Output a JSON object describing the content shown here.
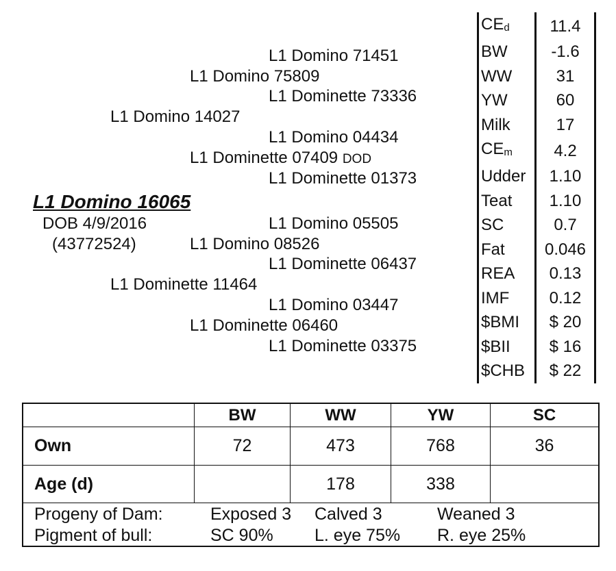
{
  "animal": {
    "name": "L1 Domino 16065",
    "dob": "DOB 4/9/2016",
    "reg": "(43772524)"
  },
  "pedigree": {
    "sss": "L1 Domino 71451",
    "ss": "L1 Domino 75809",
    "ssd": "L1 Dominette 73336",
    "s": "L1 Domino 14027",
    "sds": "L1 Domino 04434",
    "sd": "L1 Dominette 07409",
    "sd_note": "DOD",
    "sdd": "L1 Dominette 01373",
    "dss": "L1 Domino 05505",
    "ds": "L1 Domino 08526",
    "dsd": "L1 Dominette 06437",
    "d": "L1 Dominette 11464",
    "dds": "L1 Domino 03447",
    "dd": "L1 Dominette 06460",
    "ddd": "L1 Dominette 03375"
  },
  "epds": [
    {
      "k": "CE",
      "sub": "d",
      "v": "11.4"
    },
    {
      "k": "BW",
      "v": "-1.6"
    },
    {
      "k": "WW",
      "v": "31"
    },
    {
      "k": "YW",
      "v": "60"
    },
    {
      "k": "Milk",
      "v": "17"
    },
    {
      "k": "CE",
      "sub": "m",
      "v": "4.2"
    },
    {
      "k": "Udder",
      "v": "1.10"
    },
    {
      "k": "Teat",
      "v": "1.10"
    },
    {
      "k": "SC",
      "v": "0.7"
    },
    {
      "k": "Fat",
      "v": "0.046"
    },
    {
      "k": "REA",
      "v": "0.13"
    },
    {
      "k": "IMF",
      "v": "0.12"
    },
    {
      "k": "$BMI",
      "v": "$ 20"
    },
    {
      "k": "$BII",
      "v": "$ 16"
    },
    {
      "k": "$CHB",
      "v": "$ 22"
    }
  ],
  "performance": {
    "headers": [
      "",
      "BW",
      "WW",
      "YW",
      "SC"
    ],
    "rows": [
      [
        "Own",
        "72",
        "473",
        "768",
        "36"
      ],
      [
        "Age (d)",
        "",
        "178",
        "338",
        ""
      ]
    ],
    "progeny": {
      "label": "Progeny of Dam:",
      "exposed": "Exposed 3",
      "calved": "Calved 3",
      "weaned": "Weaned 3"
    },
    "pigment": {
      "label": "Pigment of bull:",
      "sc": "SC 90%",
      "leye": "L. eye 75%",
      "reye": "R. eye 25%"
    }
  }
}
